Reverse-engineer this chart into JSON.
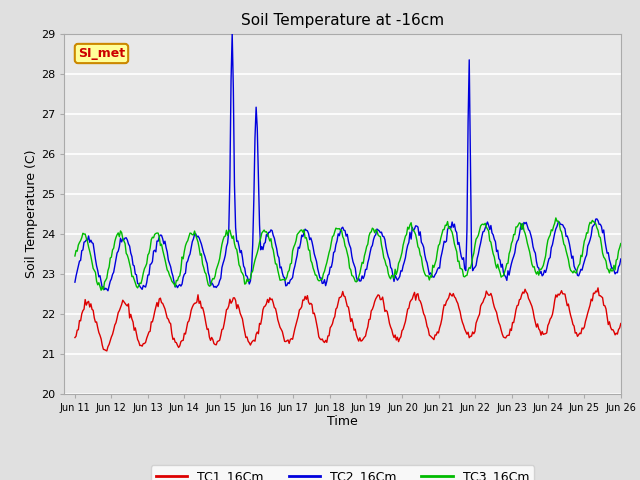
{
  "title": "Soil Temperature at -16cm",
  "xlabel": "Time",
  "ylabel": "Soil Temperature (C)",
  "ylim": [
    20.0,
    29.0
  ],
  "yticks": [
    20.0,
    21.0,
    22.0,
    23.0,
    24.0,
    25.0,
    26.0,
    27.0,
    28.0,
    29.0
  ],
  "bg_color": "#e0e0e0",
  "plot_bg_color": "#e8e8e8",
  "grid_color": "#ffffff",
  "legend_labels": [
    "TC1_16Cm",
    "TC2_16Cm",
    "TC3_16Cm"
  ],
  "legend_colors": [
    "#dd0000",
    "#0000dd",
    "#00bb00"
  ],
  "annotation_text": "SI_met",
  "annotation_bg": "#ffff99",
  "annotation_border": "#cc8800",
  "annotation_text_color": "#cc0000",
  "n_points": 480,
  "x_start": 11.0,
  "x_end": 26.0,
  "xtick_positions": [
    11,
    12,
    13,
    14,
    15,
    16,
    17,
    18,
    19,
    20,
    21,
    22,
    23,
    24,
    25,
    26
  ],
  "xtick_labels": [
    "Jun 11",
    "Jun 12",
    "Jun 13",
    "Jun 14",
    "Jun 15",
    "Jun 16",
    "Jun 17",
    "Jun 18",
    "Jun 19",
    "Jun 20",
    "Jun 21",
    "Jun 22",
    "Jun 23",
    "Jun 24",
    "Jun 25",
    "Jun 26"
  ],
  "tc1_base": 21.7,
  "tc1_amp": 0.55,
  "tc2_base": 23.2,
  "tc2_amp": 0.65,
  "tc3_base": 23.3,
  "tc3_amp": 0.65
}
